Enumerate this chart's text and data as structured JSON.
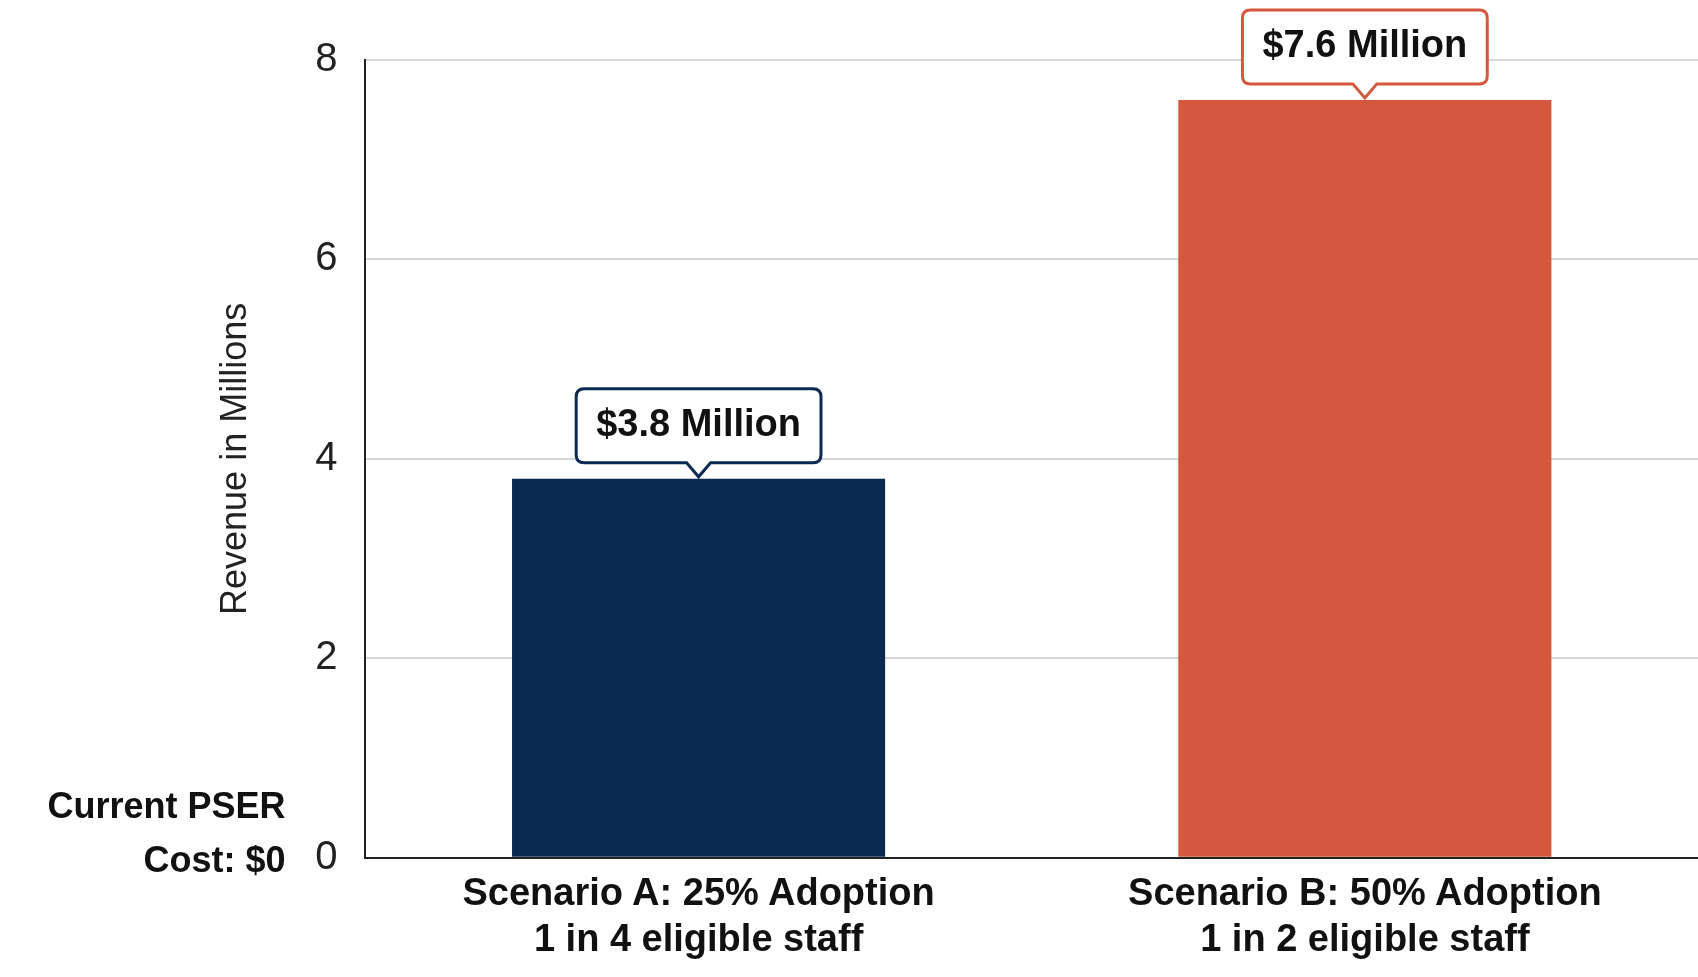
{
  "chart_data": {
    "type": "bar",
    "ylabel": "Revenue in Millions",
    "categories": [
      "Scenario A: 25% Adoption\n1 in 4 eligible staff",
      "Scenario B: 50% Adoption\n1 in 2 eligible staff"
    ],
    "values": [
      3.8,
      7.6
    ],
    "colors": [
      "#0b2a52",
      "#d4583d"
    ],
    "value_labels": [
      "$3.8 Million",
      "$7.6 Million"
    ],
    "ylim": [
      0,
      8
    ],
    "yticks": [
      0,
      2,
      4,
      6,
      8
    ],
    "grid": "y",
    "annotations": [
      "Current PSER\nCost: $0"
    ]
  }
}
